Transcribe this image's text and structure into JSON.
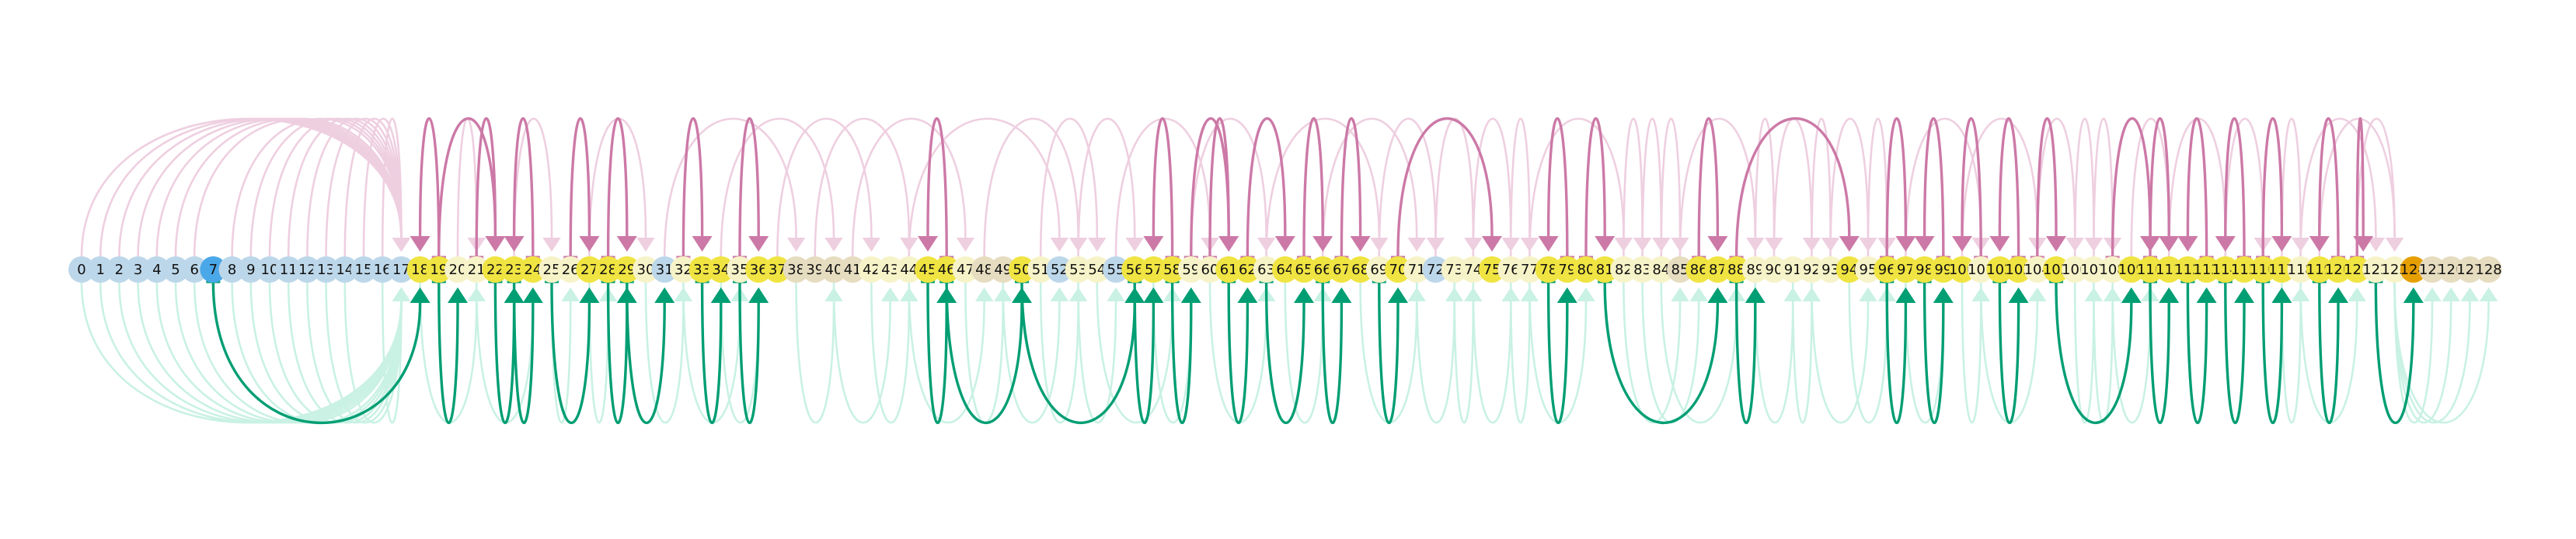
{
  "colors": {
    "node_default": "#bdd7ea",
    "node_accent_blue": "#4aa8e8",
    "node_highlight": "#f0e442",
    "node_pale": "#f7f3c9",
    "node_beige": "#e6dcc0",
    "node_orange": "#e69f00",
    "edge_up": "#cc79a7",
    "edge_down": "#009e73",
    "faint_up": "#eecfe0",
    "faint_down": "#c9f1e4"
  },
  "nodes": [
    {
      "id": 0,
      "label": "0",
      "style": "default"
    },
    {
      "id": 1,
      "label": "1",
      "style": "default"
    },
    {
      "id": 2,
      "label": "2",
      "style": "default"
    },
    {
      "id": 3,
      "label": "3",
      "style": "default"
    },
    {
      "id": 4,
      "label": "4",
      "style": "default"
    },
    {
      "id": 5,
      "label": "5",
      "style": "default"
    },
    {
      "id": 6,
      "label": "6",
      "style": "default"
    },
    {
      "id": 7,
      "label": "7",
      "style": "accent"
    },
    {
      "id": 8,
      "label": "8",
      "style": "default"
    },
    {
      "id": 9,
      "label": "9",
      "style": "default"
    },
    {
      "id": 10,
      "label": "10",
      "style": "default"
    },
    {
      "id": 11,
      "label": "11",
      "style": "default"
    },
    {
      "id": 12,
      "label": "12",
      "style": "default"
    },
    {
      "id": 13,
      "label": "13",
      "style": "default"
    },
    {
      "id": 14,
      "label": "14",
      "style": "default"
    },
    {
      "id": 15,
      "label": "15",
      "style": "default"
    },
    {
      "id": 16,
      "label": "16",
      "style": "default"
    },
    {
      "id": 17,
      "label": "17",
      "style": "default"
    },
    {
      "id": 18,
      "label": "18",
      "style": "highlight"
    },
    {
      "id": 19,
      "label": "19",
      "style": "highlight"
    },
    {
      "id": 20,
      "label": "20",
      "style": "pale"
    },
    {
      "id": 21,
      "label": "21",
      "style": "pale"
    },
    {
      "id": 22,
      "label": "22",
      "style": "highlight"
    },
    {
      "id": 23,
      "label": "23",
      "style": "highlight"
    },
    {
      "id": 24,
      "label": "24",
      "style": "highlight"
    },
    {
      "id": 25,
      "label": "25",
      "style": "pale"
    },
    {
      "id": 26,
      "label": "26",
      "style": "pale"
    },
    {
      "id": 27,
      "label": "27",
      "style": "highlight"
    },
    {
      "id": 28,
      "label": "28",
      "style": "highlight"
    },
    {
      "id": 29,
      "label": "29",
      "style": "highlight"
    },
    {
      "id": 30,
      "label": "30",
      "style": "pale"
    },
    {
      "id": 31,
      "label": "31",
      "style": "default"
    },
    {
      "id": 32,
      "label": "32",
      "style": "pale"
    },
    {
      "id": 33,
      "label": "33",
      "style": "highlight"
    },
    {
      "id": 34,
      "label": "34",
      "style": "highlight"
    },
    {
      "id": 35,
      "label": "35",
      "style": "pale"
    },
    {
      "id": 36,
      "label": "36",
      "style": "highlight"
    },
    {
      "id": 37,
      "label": "37",
      "style": "highlight"
    },
    {
      "id": 38,
      "label": "38",
      "style": "beige"
    },
    {
      "id": 39,
      "label": "39",
      "style": "beige"
    },
    {
      "id": 40,
      "label": "40",
      "style": "beige"
    },
    {
      "id": 41,
      "label": "41",
      "style": "beige"
    },
    {
      "id": 42,
      "label": "42",
      "style": "pale"
    },
    {
      "id": 43,
      "label": "43",
      "style": "pale"
    },
    {
      "id": 44,
      "label": "44",
      "style": "pale"
    },
    {
      "id": 45,
      "label": "45",
      "style": "highlight"
    },
    {
      "id": 46,
      "label": "46",
      "style": "highlight"
    },
    {
      "id": 47,
      "label": "47",
      "style": "pale"
    },
    {
      "id": 48,
      "label": "48",
      "style": "beige"
    },
    {
      "id": 49,
      "label": "49",
      "style": "beige"
    },
    {
      "id": 50,
      "label": "50",
      "style": "highlight"
    },
    {
      "id": 51,
      "label": "51",
      "style": "pale"
    },
    {
      "id": 52,
      "label": "52",
      "style": "default"
    },
    {
      "id": 53,
      "label": "53",
      "style": "pale"
    },
    {
      "id": 54,
      "label": "54",
      "style": "pale"
    },
    {
      "id": 55,
      "label": "55",
      "style": "default"
    },
    {
      "id": 56,
      "label": "56",
      "style": "highlight"
    },
    {
      "id": 57,
      "label": "57",
      "style": "highlight"
    },
    {
      "id": 58,
      "label": "58",
      "style": "highlight"
    },
    {
      "id": 59,
      "label": "59",
      "style": "pale"
    },
    {
      "id": 60,
      "label": "60",
      "style": "pale"
    },
    {
      "id": 61,
      "label": "61",
      "style": "highlight"
    },
    {
      "id": 62,
      "label": "62",
      "style": "highlight"
    },
    {
      "id": 63,
      "label": "63",
      "style": "pale"
    },
    {
      "id": 64,
      "label": "64",
      "style": "highlight"
    },
    {
      "id": 65,
      "label": "65",
      "style": "highlight"
    },
    {
      "id": 66,
      "label": "66",
      "style": "highlight"
    },
    {
      "id": 67,
      "label": "67",
      "style": "highlight"
    },
    {
      "id": 68,
      "label": "68",
      "style": "highlight"
    },
    {
      "id": 69,
      "label": "69",
      "style": "pale"
    },
    {
      "id": 70,
      "label": "70",
      "style": "highlight"
    },
    {
      "id": 71,
      "label": "71",
      "style": "pale"
    },
    {
      "id": 72,
      "label": "72",
      "style": "default"
    },
    {
      "id": 73,
      "label": "73",
      "style": "pale"
    },
    {
      "id": 74,
      "label": "74",
      "style": "pale"
    },
    {
      "id": 75,
      "label": "75",
      "style": "highlight"
    },
    {
      "id": 76,
      "label": "76",
      "style": "pale"
    },
    {
      "id": 77,
      "label": "77",
      "style": "pale"
    },
    {
      "id": 78,
      "label": "78",
      "style": "highlight"
    },
    {
      "id": 79,
      "label": "79",
      "style": "highlight"
    },
    {
      "id": 80,
      "label": "80",
      "style": "highlight"
    },
    {
      "id": 81,
      "label": "81",
      "style": "highlight"
    },
    {
      "id": 82,
      "label": "82",
      "style": "pale"
    },
    {
      "id": 83,
      "label": "83",
      "style": "pale"
    },
    {
      "id": 84,
      "label": "84",
      "style": "pale"
    },
    {
      "id": 85,
      "label": "85",
      "style": "beige"
    },
    {
      "id": 86,
      "label": "86",
      "style": "highlight"
    },
    {
      "id": 87,
      "label": "87",
      "style": "highlight"
    },
    {
      "id": 88,
      "label": "88",
      "style": "highlight"
    },
    {
      "id": 89,
      "label": "89",
      "style": "pale"
    },
    {
      "id": 90,
      "label": "90",
      "style": "pale"
    },
    {
      "id": 91,
      "label": "91",
      "style": "pale"
    },
    {
      "id": 92,
      "label": "92",
      "style": "pale"
    },
    {
      "id": 93,
      "label": "93",
      "style": "pale"
    },
    {
      "id": 94,
      "label": "94",
      "style": "highlight"
    },
    {
      "id": 95,
      "label": "95",
      "style": "pale"
    },
    {
      "id": 96,
      "label": "96",
      "style": "highlight"
    },
    {
      "id": 97,
      "label": "97",
      "style": "highlight"
    },
    {
      "id": 98,
      "label": "98",
      "style": "highlight"
    },
    {
      "id": 99,
      "label": "99",
      "style": "highlight"
    },
    {
      "id": 100,
      "label": "100",
      "style": "highlight"
    },
    {
      "id": 101,
      "label": "101",
      "style": "pale"
    },
    {
      "id": 102,
      "label": "102",
      "style": "highlight"
    },
    {
      "id": 103,
      "label": "103",
      "style": "highlight"
    },
    {
      "id": 104,
      "label": "104",
      "style": "pale"
    },
    {
      "id": 105,
      "label": "105",
      "style": "highlight"
    },
    {
      "id": 106,
      "label": "106",
      "style": "pale"
    },
    {
      "id": 107,
      "label": "107",
      "style": "pale"
    },
    {
      "id": 108,
      "label": "108",
      "style": "pale"
    },
    {
      "id": 109,
      "label": "109",
      "style": "highlight"
    },
    {
      "id": 110,
      "label": "110",
      "style": "highlight"
    },
    {
      "id": 111,
      "label": "111",
      "style": "highlight"
    },
    {
      "id": 112,
      "label": "112",
      "style": "highlight"
    },
    {
      "id": 113,
      "label": "113",
      "style": "highlight"
    },
    {
      "id": 114,
      "label": "114",
      "style": "highlight"
    },
    {
      "id": 115,
      "label": "115",
      "style": "highlight"
    },
    {
      "id": 116,
      "label": "116",
      "style": "highlight"
    },
    {
      "id": 117,
      "label": "117",
      "style": "highlight"
    },
    {
      "id": 118,
      "label": "118",
      "style": "pale"
    },
    {
      "id": 119,
      "label": "119",
      "style": "highlight"
    },
    {
      "id": 120,
      "label": "120",
      "style": "highlight"
    },
    {
      "id": 121,
      "label": "121",
      "style": "highlight"
    },
    {
      "id": 122,
      "label": "122",
      "style": "pale"
    },
    {
      "id": 123,
      "label": "123",
      "style": "pale"
    },
    {
      "id": 124,
      "label": "124",
      "style": "orange"
    },
    {
      "id": 125,
      "label": "125",
      "style": "beige"
    },
    {
      "id": 126,
      "label": "126",
      "style": "beige"
    },
    {
      "id": 127,
      "label": "127",
      "style": "beige"
    },
    {
      "id": 128,
      "label": "128",
      "style": "beige"
    }
  ],
  "bold_up_edges": [
    [
      19,
      18
    ],
    [
      19,
      22
    ],
    [
      21,
      22
    ],
    [
      24,
      23
    ],
    [
      26,
      27
    ],
    [
      28,
      29
    ],
    [
      32,
      33
    ],
    [
      35,
      36
    ],
    [
      46,
      45
    ],
    [
      58,
      57
    ],
    [
      59,
      61
    ],
    [
      60,
      61
    ],
    [
      62,
      64
    ],
    [
      65,
      66
    ],
    [
      67,
      68
    ],
    [
      70,
      75
    ],
    [
      79,
      78
    ],
    [
      80,
      81
    ],
    [
      86,
      87
    ],
    [
      88,
      94
    ],
    [
      96,
      97
    ],
    [
      99,
      98
    ],
    [
      101,
      100
    ],
    [
      103,
      102
    ],
    [
      104,
      105
    ],
    [
      108,
      110
    ],
    [
      110,
      111
    ],
    [
      113,
      112
    ],
    [
      115,
      114
    ],
    [
      116,
      117
    ],
    [
      120,
      119
    ],
    [
      121,
      121
    ]
  ],
  "bold_down_edges": [
    [
      7,
      18
    ],
    [
      19,
      20
    ],
    [
      22,
      23
    ],
    [
      23,
      24
    ],
    [
      25,
      27
    ],
    [
      28,
      29
    ],
    [
      29,
      31
    ],
    [
      33,
      34
    ],
    [
      35,
      36
    ],
    [
      45,
      46
    ],
    [
      46,
      50
    ],
    [
      50,
      56
    ],
    [
      56,
      57
    ],
    [
      58,
      59
    ],
    [
      61,
      62
    ],
    [
      63,
      65
    ],
    [
      66,
      67
    ],
    [
      69,
      70
    ],
    [
      78,
      79
    ],
    [
      81,
      87
    ],
    [
      88,
      89
    ],
    [
      96,
      97
    ],
    [
      98,
      99
    ],
    [
      102,
      103
    ],
    [
      105,
      109
    ],
    [
      110,
      111
    ],
    [
      112,
      113
    ],
    [
      114,
      115
    ],
    [
      116,
      117
    ],
    [
      119,
      120
    ],
    [
      122,
      124
    ]
  ],
  "faint_up_edges": [
    [
      0,
      17
    ],
    [
      1,
      17
    ],
    [
      2,
      17
    ],
    [
      3,
      17
    ],
    [
      4,
      17
    ],
    [
      5,
      17
    ],
    [
      6,
      17
    ],
    [
      8,
      17
    ],
    [
      9,
      17
    ],
    [
      10,
      17
    ],
    [
      11,
      17
    ],
    [
      12,
      17
    ],
    [
      13,
      17
    ],
    [
      14,
      17
    ],
    [
      15,
      17
    ],
    [
      16,
      17
    ],
    [
      20,
      21
    ],
    [
      23,
      25
    ],
    [
      27,
      30
    ],
    [
      31,
      38
    ],
    [
      34,
      40
    ],
    [
      37,
      42
    ],
    [
      39,
      44
    ],
    [
      41,
      47
    ],
    [
      44,
      52
    ],
    [
      48,
      53
    ],
    [
      51,
      54
    ],
    [
      53,
      56
    ],
    [
      55,
      60
    ],
    [
      59,
      63
    ],
    [
      63,
      69
    ],
    [
      66,
      71
    ],
    [
      69,
      72
    ],
    [
      72,
      74
    ],
    [
      74,
      76
    ],
    [
      76,
      77
    ],
    [
      77,
      82
    ],
    [
      82,
      83
    ],
    [
      83,
      84
    ],
    [
      84,
      85
    ],
    [
      85,
      89
    ],
    [
      89,
      90
    ],
    [
      90,
      92
    ],
    [
      92,
      93
    ],
    [
      93,
      95
    ],
    [
      95,
      96
    ],
    [
      97,
      101
    ],
    [
      100,
      104
    ],
    [
      104,
      106
    ],
    [
      106,
      107
    ],
    [
      107,
      108
    ],
    [
      109,
      111
    ],
    [
      111,
      114
    ],
    [
      114,
      116
    ],
    [
      117,
      118
    ],
    [
      118,
      122
    ],
    [
      119,
      123
    ],
    [
      121,
      123
    ]
  ],
  "faint_down_edges": [
    [
      0,
      17
    ],
    [
      1,
      17
    ],
    [
      2,
      17
    ],
    [
      3,
      17
    ],
    [
      4,
      17
    ],
    [
      5,
      17
    ],
    [
      6,
      17
    ],
    [
      8,
      17
    ],
    [
      9,
      17
    ],
    [
      10,
      17
    ],
    [
      11,
      17
    ],
    [
      12,
      17
    ],
    [
      13,
      17
    ],
    [
      14,
      17
    ],
    [
      16,
      17
    ],
    [
      18,
      21
    ],
    [
      21,
      24
    ],
    [
      25,
      26
    ],
    [
      27,
      28
    ],
    [
      30,
      32
    ],
    [
      32,
      35
    ],
    [
      34,
      36
    ],
    [
      38,
      40
    ],
    [
      40,
      43
    ],
    [
      42,
      44
    ],
    [
      44,
      48
    ],
    [
      47,
      49
    ],
    [
      49,
      52
    ],
    [
      51,
      53
    ],
    [
      53,
      55
    ],
    [
      54,
      58
    ],
    [
      57,
      59
    ],
    [
      60,
      63
    ],
    [
      64,
      66
    ],
    [
      68,
      71
    ],
    [
      71,
      73
    ],
    [
      73,
      74
    ],
    [
      74,
      76
    ],
    [
      76,
      77
    ],
    [
      77,
      80
    ],
    [
      82,
      85
    ],
    [
      83,
      86
    ],
    [
      84,
      88
    ],
    [
      89,
      91
    ],
    [
      91,
      92
    ],
    [
      92,
      95
    ],
    [
      94,
      96
    ],
    [
      97,
      99
    ],
    [
      100,
      101
    ],
    [
      101,
      104
    ],
    [
      106,
      107
    ],
    [
      107,
      108
    ],
    [
      108,
      110
    ],
    [
      117,
      118
    ],
    [
      118,
      121
    ],
    [
      123,
      125
    ],
    [
      123,
      126
    ],
    [
      123,
      127
    ],
    [
      123,
      128
    ]
  ]
}
